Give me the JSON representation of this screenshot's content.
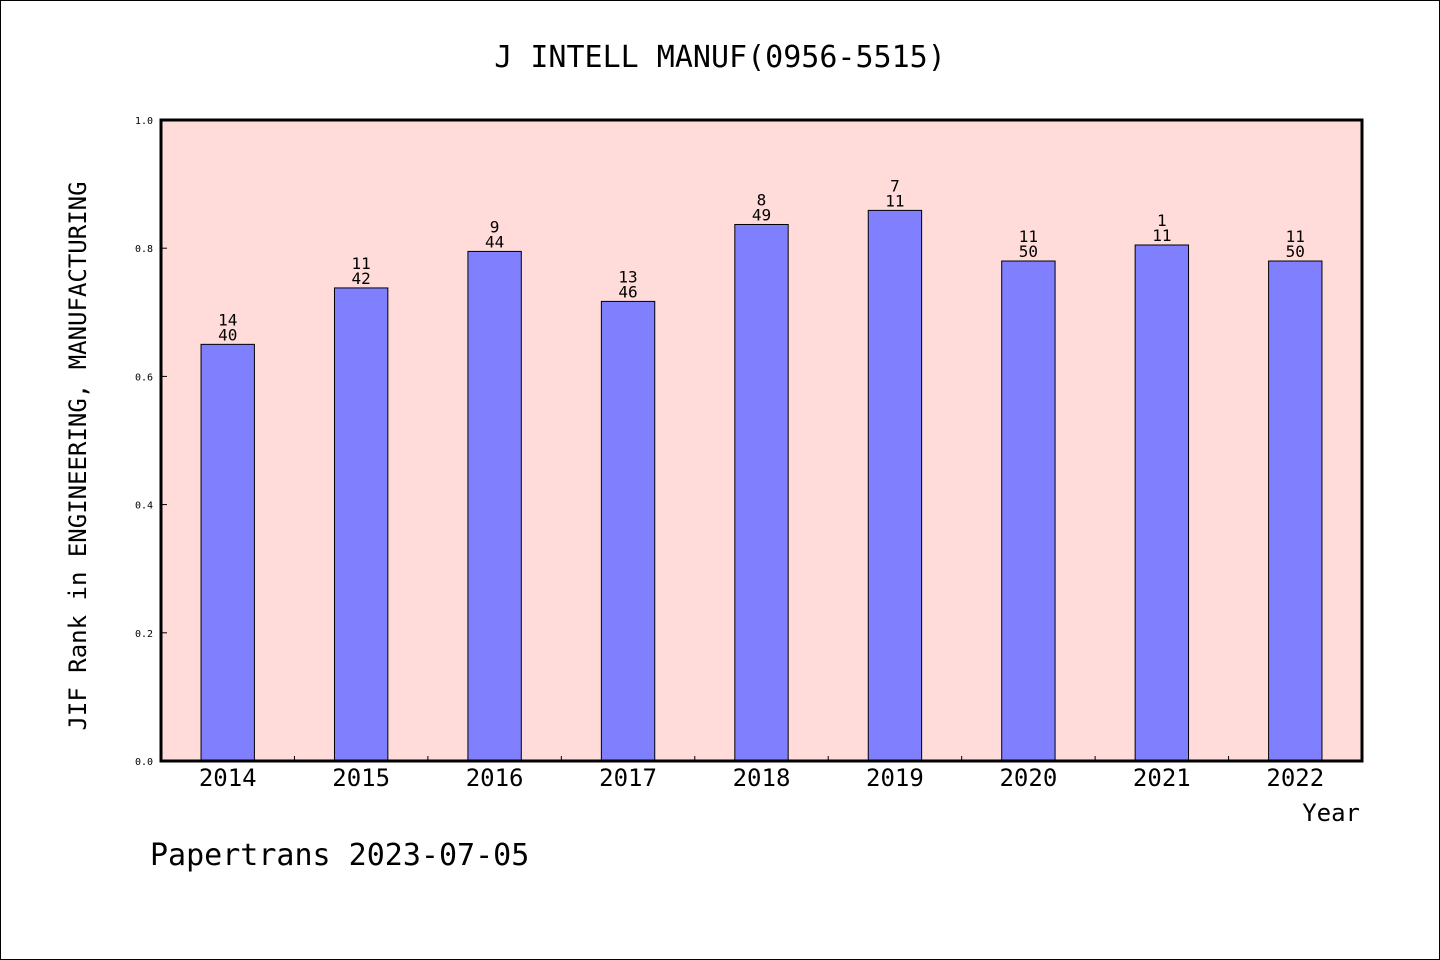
{
  "chart_data": {
    "type": "bar",
    "title": "J INTELL MANUF(0956-5515)",
    "xlabel": "Year",
    "ylabel": "JIF Rank in ENGINEERING, MANUFACTURING",
    "ylim": [
      0.0,
      1.0
    ],
    "yticks": [
      "0.0",
      "0.2",
      "0.4",
      "0.6",
      "0.8",
      "1.0"
    ],
    "grid": false,
    "categories": [
      "2014",
      "2015",
      "2016",
      "2017",
      "2018",
      "2019",
      "2020",
      "2021",
      "2022"
    ],
    "values": [
      0.65,
      0.738,
      0.795,
      0.717,
      0.837,
      0.859,
      0.78,
      0.805,
      0.78
    ],
    "rank_labels": [
      "14",
      "11",
      "9",
      "13",
      "8",
      "7",
      "11",
      "1",
      "11"
    ],
    "total_labels": [
      "40",
      "42",
      "44",
      "46",
      "49",
      "11",
      "50",
      "11",
      "50"
    ],
    "colors": {
      "bar_fill": "#8080ff",
      "bar_stroke": "#000000",
      "plot_background": "#ffdcd9",
      "axis": "#000000",
      "text": "#000000"
    }
  },
  "footer": {
    "text": "Papertrans 2023-07-05"
  }
}
